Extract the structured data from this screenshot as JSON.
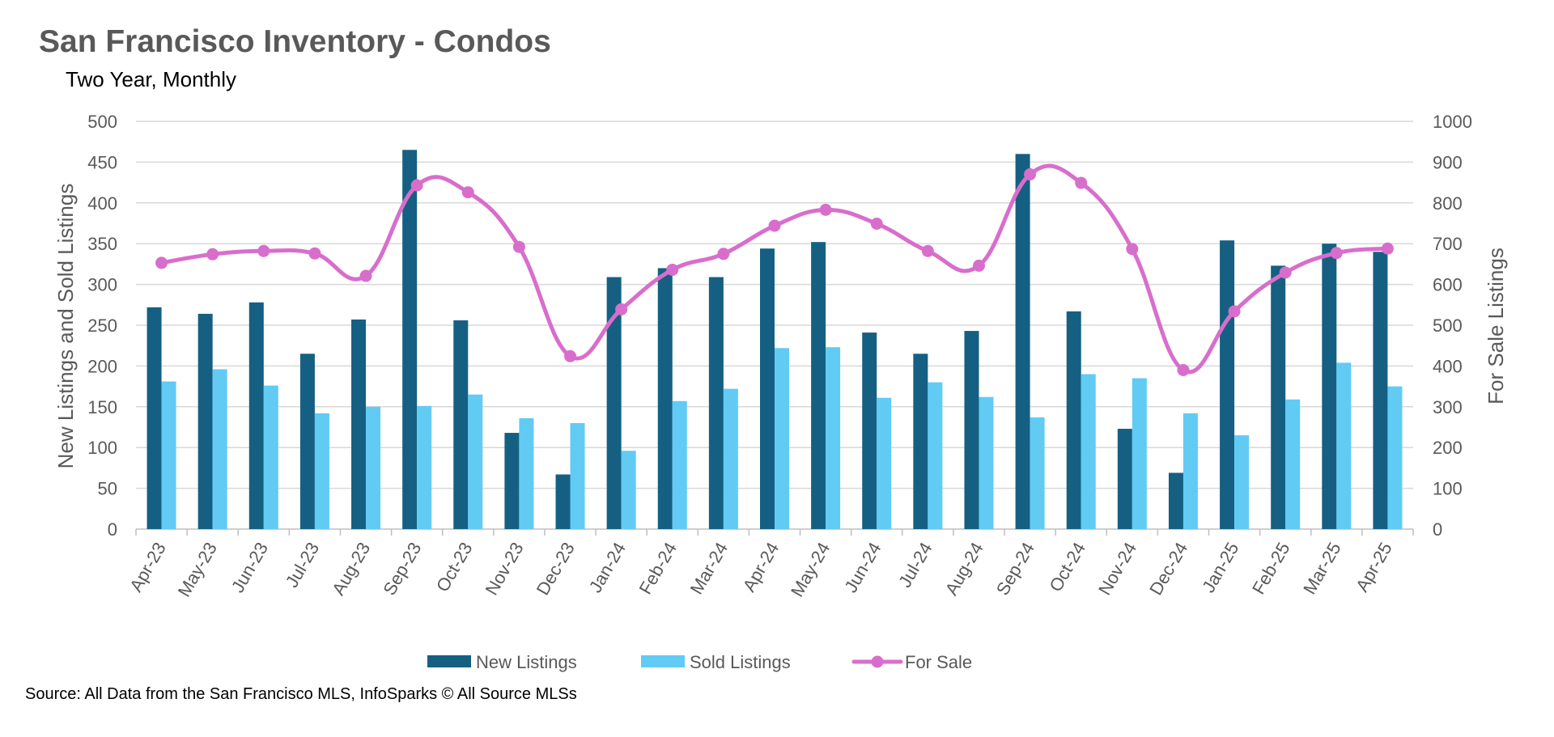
{
  "chart_data": {
    "type": "bar",
    "title": "San Francisco Inventory - Condos",
    "subtitle": "Two Year, Monthly",
    "source": "Source: All Data from the San Francisco MLS, InfoSparks © All Source MLSs",
    "categories": [
      "Apr-23",
      "May-23",
      "Jun-23",
      "Jul-23",
      "Aug-23",
      "Sep-23",
      "Oct-23",
      "Nov-23",
      "Dec-23",
      "Jan-24",
      "Feb-24",
      "Mar-24",
      "Apr-24",
      "May-24",
      "Jun-24",
      "Jul-24",
      "Aug-24",
      "Sep-24",
      "Oct-24",
      "Nov-24",
      "Dec-24",
      "Jan-25",
      "Feb-25",
      "Mar-25",
      "Apr-25"
    ],
    "series": [
      {
        "name": "New Listings",
        "type": "bar",
        "axis": "left",
        "color": "#156082",
        "values": [
          272,
          264,
          278,
          215,
          257,
          465,
          256,
          118,
          67,
          309,
          320,
          309,
          344,
          352,
          241,
          215,
          243,
          460,
          267,
          123,
          69,
          354,
          323,
          350,
          340
        ]
      },
      {
        "name": "Sold Listings",
        "type": "bar",
        "axis": "left",
        "color": "#61CBF4",
        "values": [
          181,
          196,
          176,
          142,
          150,
          151,
          165,
          136,
          130,
          96,
          157,
          172,
          222,
          223,
          161,
          180,
          162,
          137,
          190,
          185,
          142,
          115,
          159,
          204,
          175
        ]
      },
      {
        "name": "For Sale",
        "type": "line",
        "axis": "right",
        "color": "#D86ECC",
        "values": [
          653,
          674,
          682,
          676,
          621,
          843,
          826,
          692,
          424,
          539,
          636,
          675,
          744,
          783,
          749,
          682,
          646,
          870,
          849,
          687,
          390,
          534,
          629,
          677,
          688
        ]
      }
    ],
    "ylabel": "New Listings and Sold Listings",
    "y2label": "For Sale Listings",
    "ylim": [
      0,
      500
    ],
    "y2lim": [
      0,
      1000
    ],
    "yticks": [
      "0",
      "50",
      "100",
      "150",
      "200",
      "250",
      "300",
      "350",
      "400",
      "450",
      "500"
    ],
    "y2ticks": [
      "0",
      "100",
      "200",
      "300",
      "400",
      "500",
      "600",
      "700",
      "800",
      "900",
      "1000"
    ],
    "grid": true,
    "legend": "bottom"
  }
}
